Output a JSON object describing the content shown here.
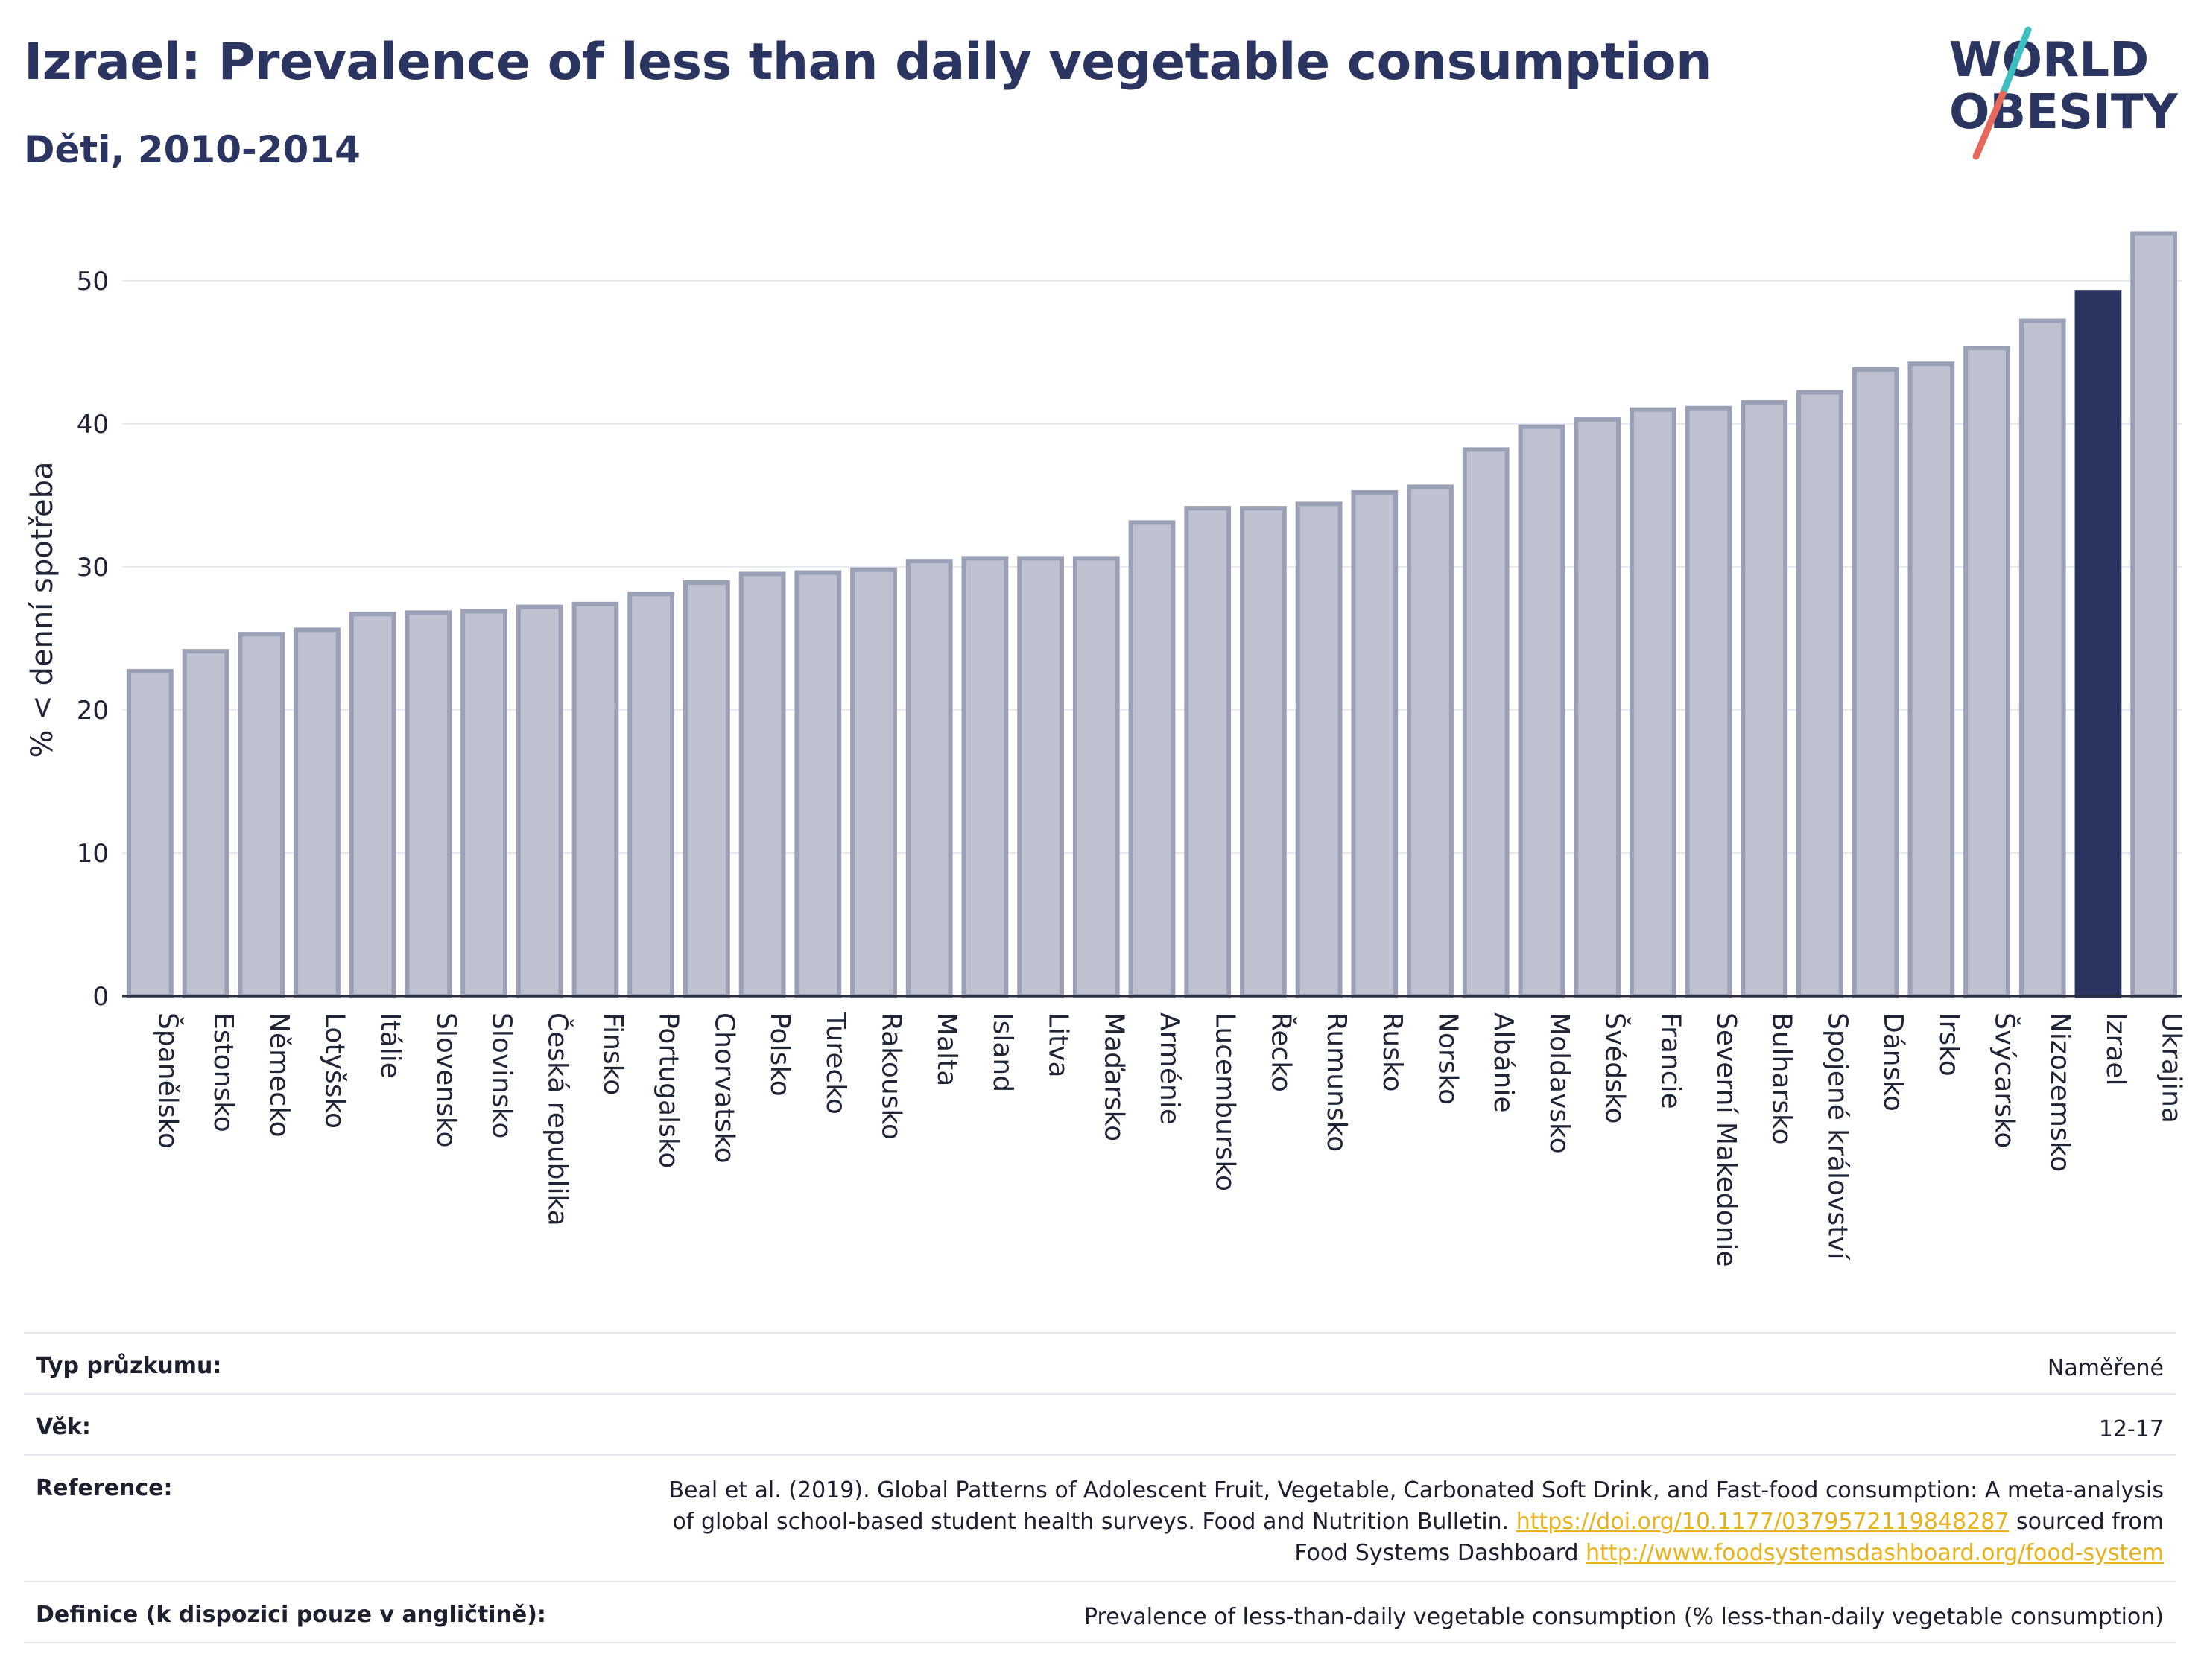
{
  "title": "Izrael: Prevalence of less than daily vegetable consumption",
  "subtitle": "Děti, 2010-2014",
  "logo": {
    "line1": "WORLD",
    "line2": "OBESITY",
    "accent_colors": [
      "#3bbfc1",
      "#e5685a"
    ]
  },
  "chart_data": {
    "type": "bar",
    "ylabel": "% < denní spotřeba",
    "ylim": [
      0,
      54
    ],
    "yticks": [
      0,
      10,
      20,
      30,
      40,
      50
    ],
    "grid": true,
    "highlight": "Izrael",
    "colors": {
      "bar": "#bec1cf",
      "bar_border": "#9aa0b6",
      "highlight": "#2b3561"
    },
    "categories": [
      "Španělsko",
      "Estonsko",
      "Německo",
      "Lotyšsko",
      "Itálie",
      "Slovensko",
      "Slovinsko",
      "Česká republika",
      "Finsko",
      "Portugalsko",
      "Chorvatsko",
      "Polsko",
      "Turecko",
      "Rakousko",
      "Malta",
      "Island",
      "Litva",
      "Maďarsko",
      "Arménie",
      "Lucembursko",
      "Řecko",
      "Rumunsko",
      "Rusko",
      "Norsko",
      "Albánie",
      "Moldavsko",
      "Švédsko",
      "Francie",
      "Severní Makedonie",
      "Bulharsko",
      "Spojené království",
      "Dánsko",
      "Irsko",
      "Švýcarsko",
      "Nizozemsko",
      "Izrael",
      "Ukrajina"
    ],
    "values": [
      22.7,
      24.1,
      25.3,
      25.6,
      26.7,
      26.8,
      26.9,
      27.2,
      27.4,
      28.1,
      28.9,
      29.5,
      29.6,
      29.8,
      30.4,
      30.6,
      30.6,
      30.6,
      33.1,
      34.1,
      34.1,
      34.4,
      35.2,
      35.6,
      38.2,
      39.8,
      40.3,
      41.0,
      41.1,
      41.5,
      42.2,
      43.8,
      44.2,
      45.3,
      47.2,
      49.2,
      53.3
    ]
  },
  "meta": [
    {
      "label": "Typ průzkumu:",
      "value": "Naměřené"
    },
    {
      "label": "Věk:",
      "value": "12-17"
    },
    {
      "label": "Reference:",
      "value_line1": "Beal et al. (2019). Global Patterns of Adolescent Fruit, Vegetable, Carbonated Soft Drink, and Fast-food consumption: A meta-analysis",
      "value_line2_text": "of global school-based student health surveys. Food and Nutrition Bulletin.",
      "link1": "https://doi.org/10.1177/0379572119848287",
      "value_line2_tail": "sourced from",
      "value_line3_text": "Food Systems Dashboard",
      "link2": "http://www.foodsystemsdashboard.org/food-system"
    },
    {
      "label": "Definice (k dispozici pouze v angličtině):",
      "value": "Prevalence of less-than-daily vegetable consumption (% less-than-daily vegetable consumption)"
    }
  ]
}
